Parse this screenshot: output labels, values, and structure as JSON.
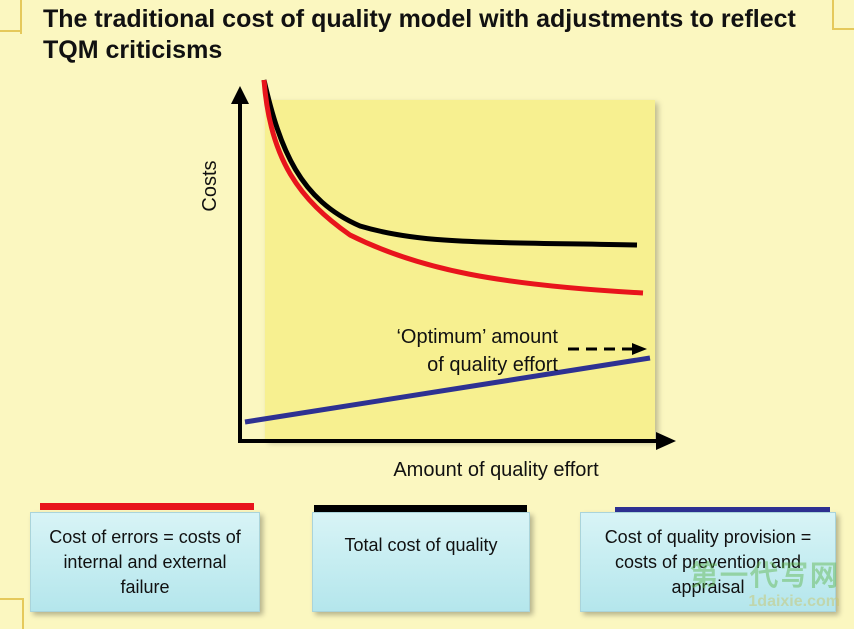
{
  "title": "The traditional cost of quality model with adjustments to reflect TQM criticisms",
  "diagram": {
    "y_axis_label": "Costs",
    "x_axis_label": "Amount of quality effort",
    "annotation_line1": "‘Optimum’ amount",
    "annotation_line2": "of quality effort",
    "plot_fill": "#f7f090",
    "colors": {
      "total": "#000000",
      "errors": "#e8141c",
      "provision": "#2e3192"
    }
  },
  "legend": [
    {
      "label": "Cost of errors = costs of internal and external failure",
      "color": "#e8141c"
    },
    {
      "label": "Total cost of quality",
      "color": "#000000"
    },
    {
      "label": "Cost of quality provision = costs of prevention and appraisal",
      "color": "#2e3192"
    }
  ],
  "watermark": {
    "text_cn": "第一代写网",
    "text_en": "1daixie.com"
  }
}
